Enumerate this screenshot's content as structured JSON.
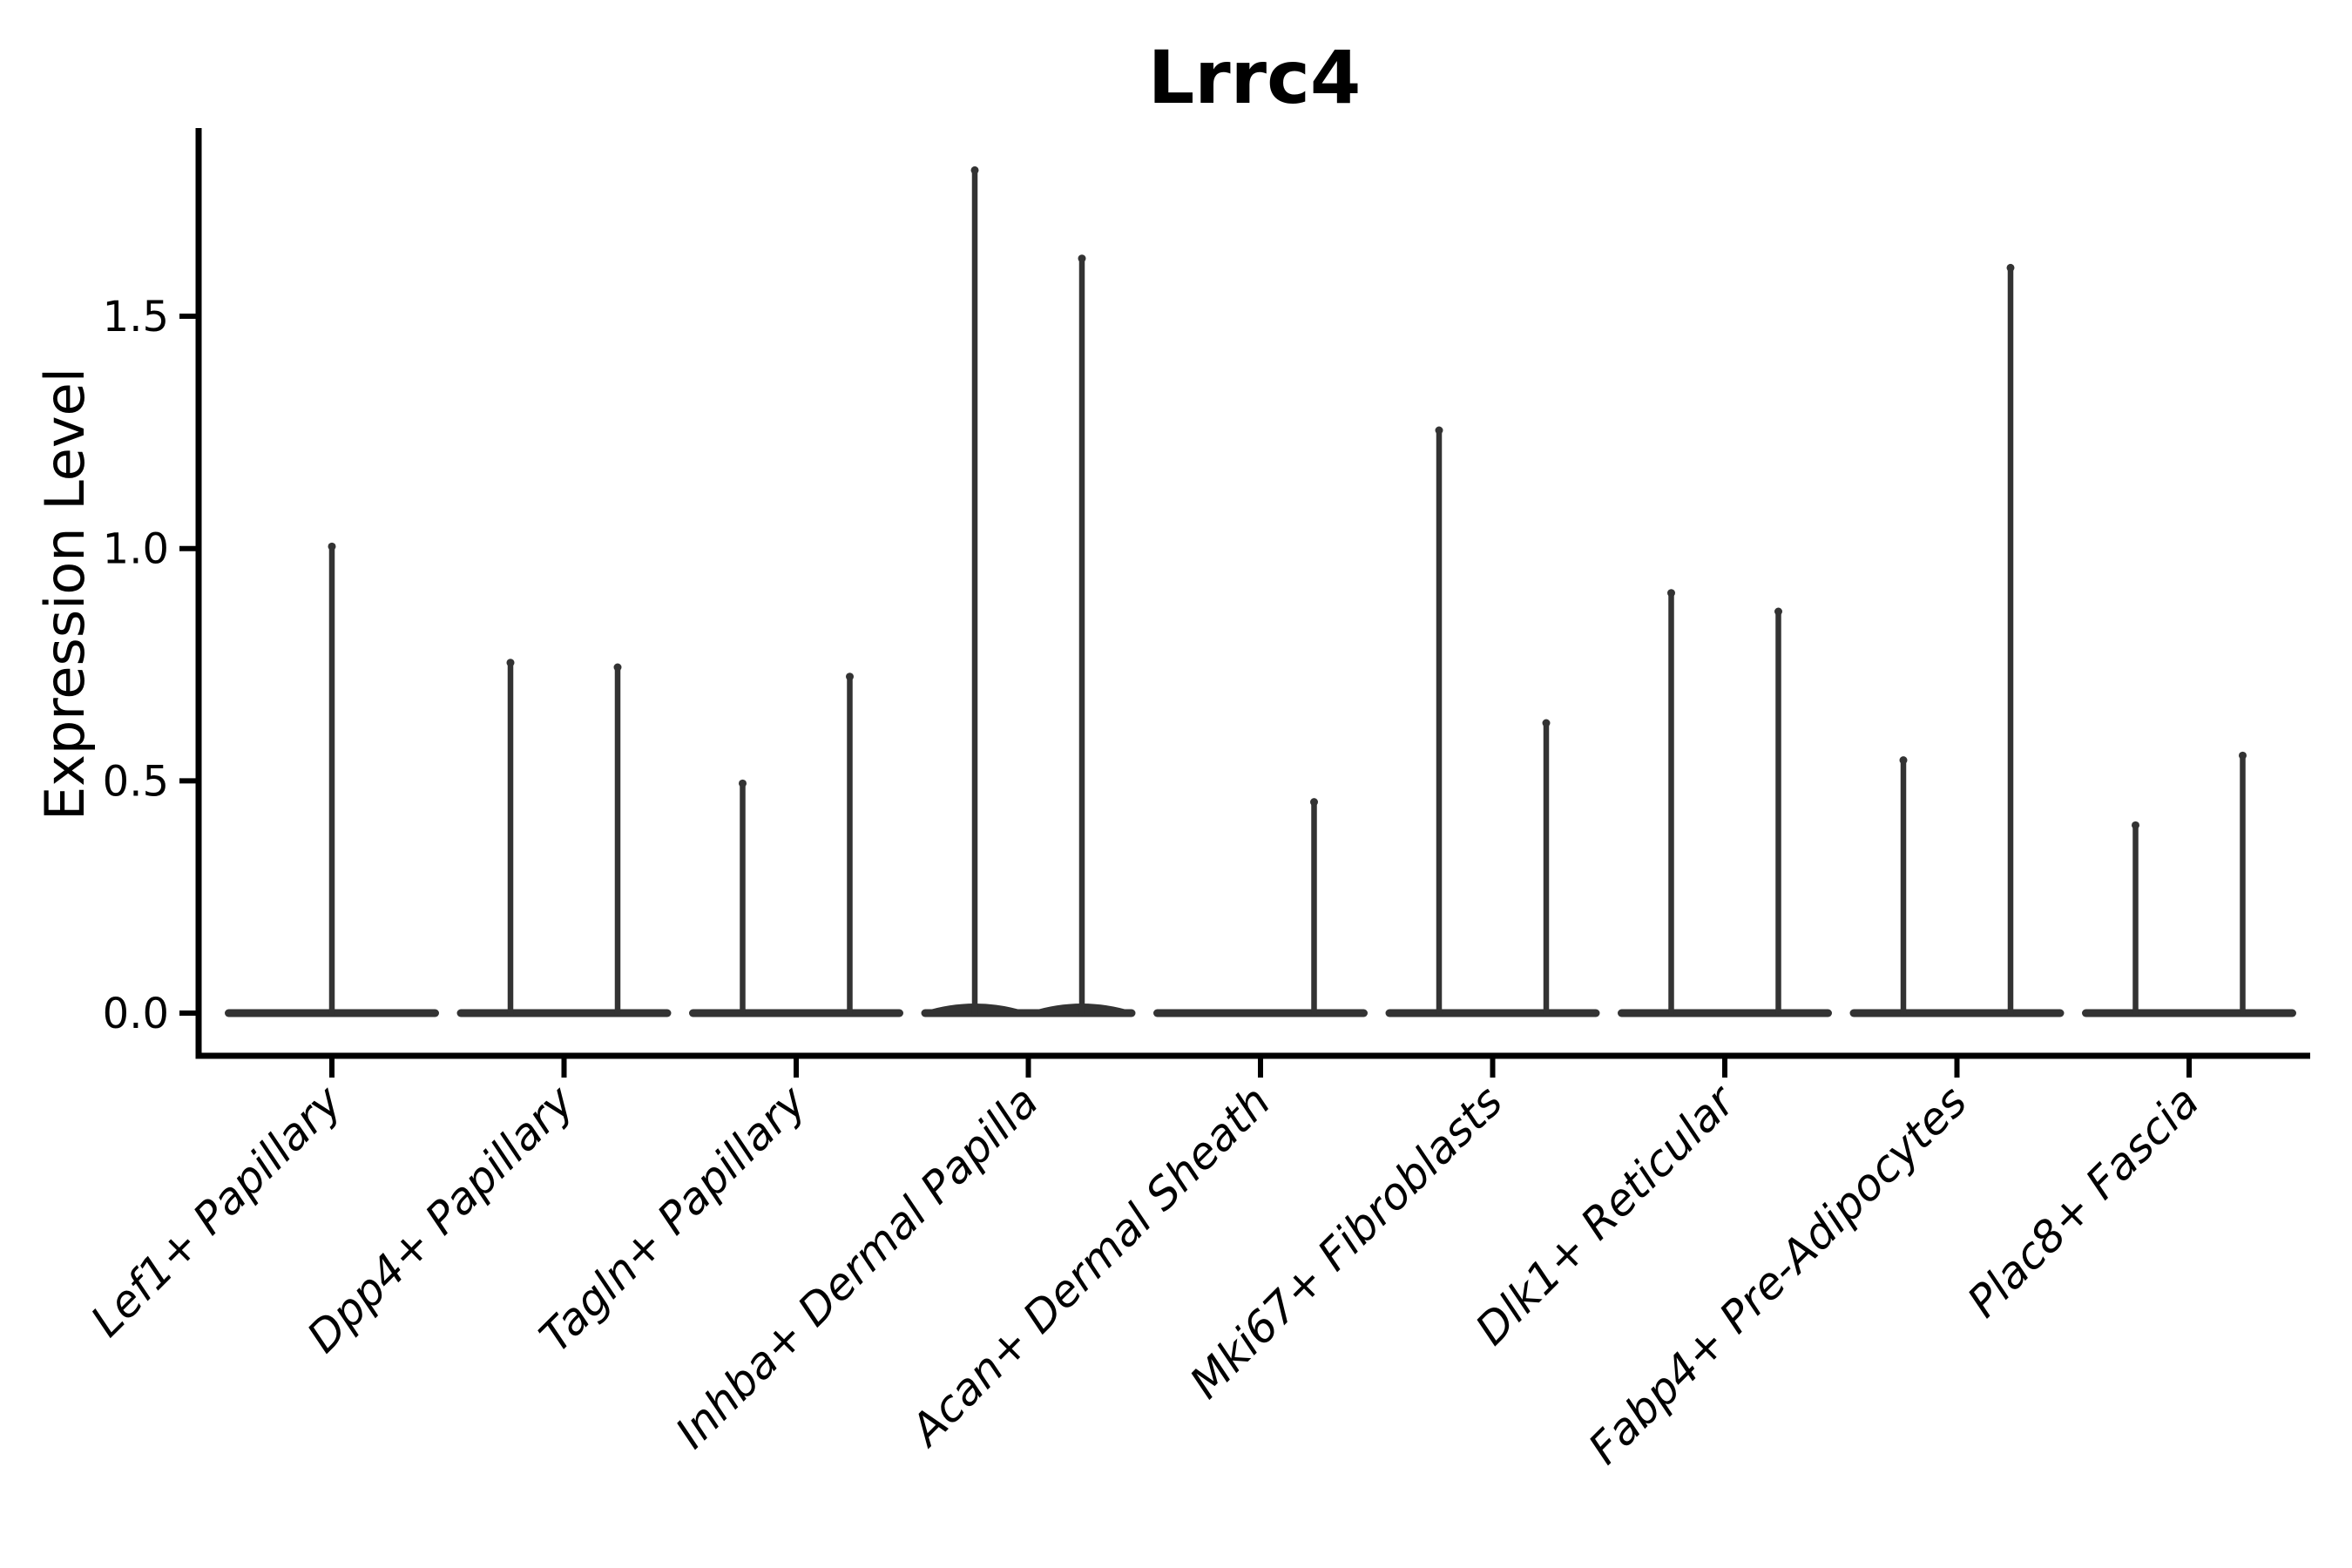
{
  "chart_data": {
    "type": "violin",
    "title": "Lrrc4",
    "xlabel": "",
    "ylabel": "Expression Level",
    "ylim": [
      -0.06,
      1.92
    ],
    "ytick_values": [
      0.0,
      0.5,
      1.0,
      1.5
    ],
    "ytick_labels": [
      "0.0",
      "0.5",
      "1.0",
      "1.5"
    ],
    "grid": "off",
    "legend": "none",
    "violin_color": "#333333",
    "axis_color": "#000000",
    "categories": [
      {
        "label": "Lef1+ Papillary",
        "violins": [
          {
            "side": "center",
            "max_expression": 1.01
          }
        ]
      },
      {
        "label": "Dpp4+ Papillary",
        "violins": [
          {
            "side": "left",
            "max_expression": 0.76
          },
          {
            "side": "right",
            "max_expression": 0.75
          }
        ]
      },
      {
        "label": "Tagln+ Papillary",
        "violins": [
          {
            "side": "left",
            "max_expression": 0.5
          },
          {
            "side": "right",
            "max_expression": 0.73
          }
        ]
      },
      {
        "label": "Inhba+ Dermal Papilla",
        "wide_base": true,
        "violins": [
          {
            "side": "left",
            "max_expression": 1.82
          },
          {
            "side": "right",
            "max_expression": 1.63
          }
        ]
      },
      {
        "label": "Acan+ Dermal Sheath",
        "violins": [
          {
            "side": "right",
            "max_expression": 0.46
          }
        ]
      },
      {
        "label": "Mki67+ Fibroblasts",
        "violins": [
          {
            "side": "left",
            "max_expression": 1.26
          },
          {
            "side": "right",
            "max_expression": 0.63
          }
        ]
      },
      {
        "label": "Dlk1+ Reticular",
        "violins": [
          {
            "side": "left",
            "max_expression": 0.91
          },
          {
            "side": "right",
            "max_expression": 0.87
          }
        ]
      },
      {
        "label": "Fabp4+ Pre-Adipocytes",
        "violins": [
          {
            "side": "left",
            "max_expression": 0.55
          },
          {
            "side": "right",
            "max_expression": 1.61
          }
        ]
      },
      {
        "label": "Plac8+ Fascia",
        "violins": [
          {
            "side": "left",
            "max_expression": 0.41
          },
          {
            "side": "right",
            "max_expression": 0.56
          }
        ]
      }
    ]
  }
}
